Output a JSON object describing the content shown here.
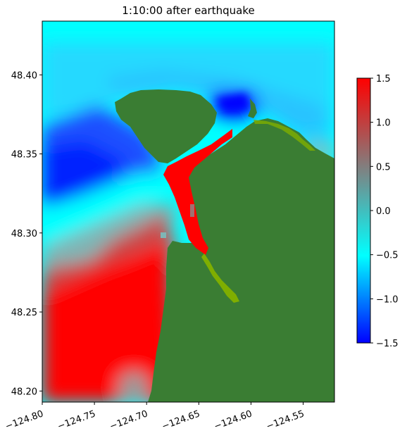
{
  "chart_data": {
    "type": "heatmap",
    "title": "1:10:00 after earthquake",
    "xlabel": "",
    "ylabel": "",
    "xlim": [
      -124.8,
      -124.52
    ],
    "ylim": [
      48.193,
      48.434
    ],
    "x_ticks": [
      -124.8,
      -124.75,
      -124.7,
      -124.65,
      -124.6,
      -124.55
    ],
    "x_tick_labels": [
      "−124.80",
      "−124.75",
      "−124.70",
      "−124.65",
      "−124.60",
      "−124.55"
    ],
    "y_ticks": [
      48.2,
      48.25,
      48.3,
      48.35,
      48.4
    ],
    "y_tick_labels": [
      "48.20",
      "48.25",
      "48.30",
      "48.35",
      "48.40"
    ],
    "colorbar": {
      "range": [
        -1.5,
        1.5
      ],
      "ticks": [
        -1.5,
        -1.0,
        -0.5,
        0.0,
        0.5,
        1.0,
        1.5
      ],
      "tick_labels": [
        "−1.5",
        "−1.0",
        "−0.5",
        "0.0",
        "0.5",
        "1.0",
        "1.5"
      ],
      "colormap": [
        "#0000ff",
        "#00ffff",
        "#808080",
        "#ff0000"
      ]
    },
    "colors": {
      "land": "#3a7d33",
      "shallow": "#7fae00",
      "positive": "#ff0000",
      "negative": "#0000ff",
      "zero": "#00ffff"
    }
  }
}
